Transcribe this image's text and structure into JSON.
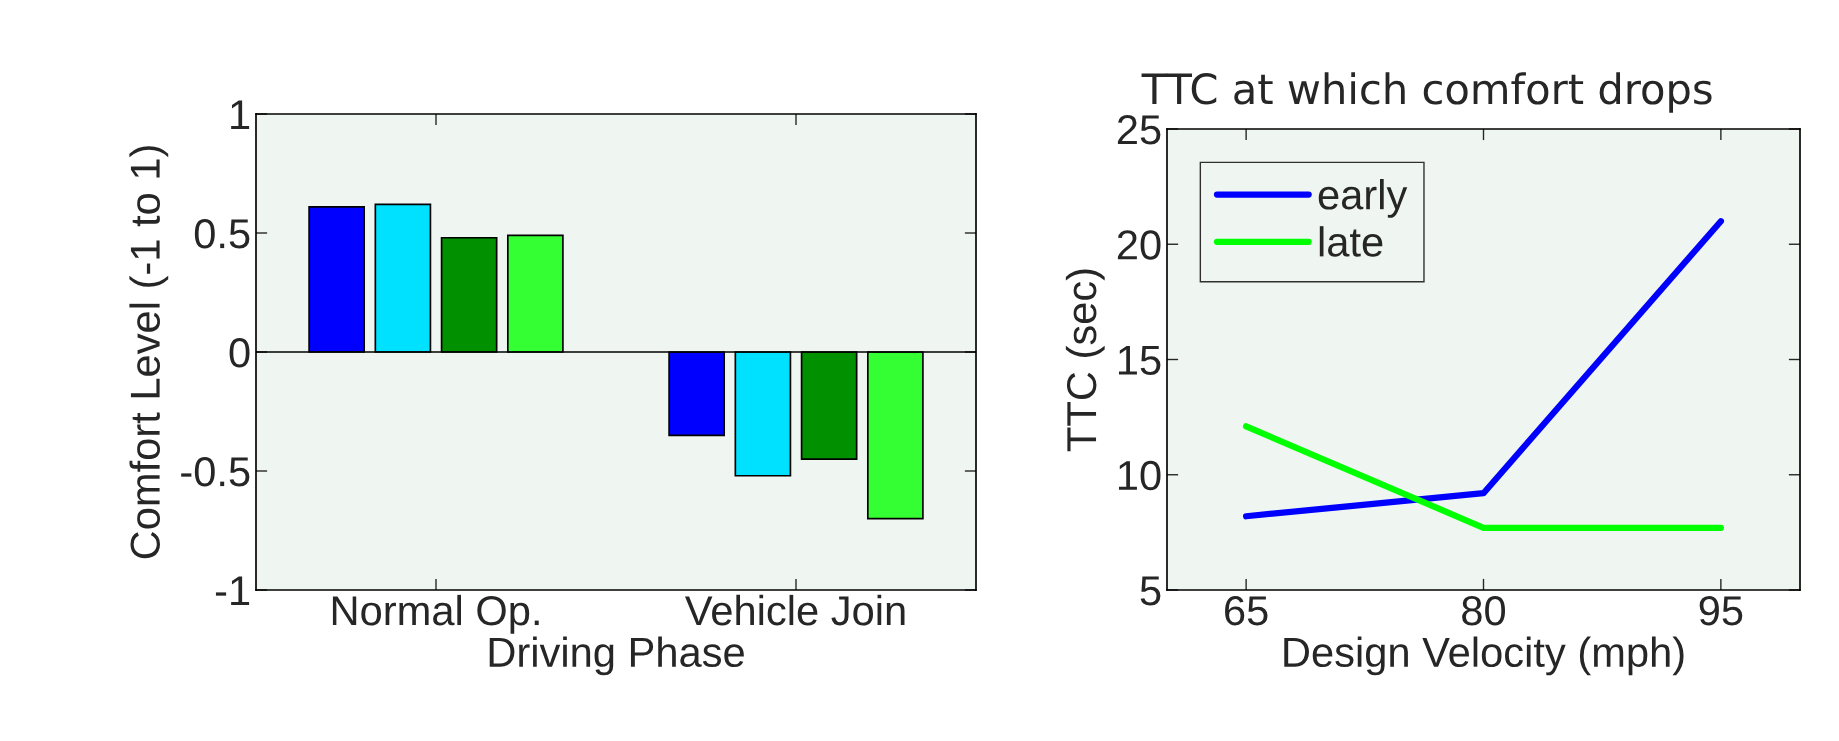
{
  "chart_data": [
    {
      "type": "bar",
      "xlabel": "Driving Phase",
      "ylabel": "Comfort Level (-1 to 1)",
      "categories": [
        "Normal Op.",
        "Vehicle Join"
      ],
      "series": [
        {
          "color": "#0000ff",
          "values": [
            0.61,
            -0.35
          ]
        },
        {
          "color": "#00e0ff",
          "values": [
            0.62,
            -0.52
          ]
        },
        {
          "color": "#009000",
          "values": [
            0.48,
            -0.45
          ]
        },
        {
          "color": "#33ff33",
          "values": [
            0.49,
            -0.7
          ]
        }
      ],
      "ylim": [
        -1,
        1
      ],
      "yticks": [
        -1,
        -0.5,
        0,
        0.5,
        1
      ],
      "grid": false,
      "legend": false,
      "ref_lines": [
        {
          "axis": "y",
          "value": 0,
          "color": "#000000"
        }
      ]
    },
    {
      "type": "line",
      "title": "TTC at which comfort drops",
      "xlabel": "Design Velocity (mph)",
      "ylabel": "TTC (sec)",
      "x": [
        65,
        80,
        95
      ],
      "series": [
        {
          "name": "early",
          "color": "#0000ff",
          "values": [
            8.2,
            9.2,
            21.0
          ]
        },
        {
          "name": "late",
          "color": "#00ff00",
          "values": [
            12.1,
            7.7,
            7.7
          ]
        }
      ],
      "xlim": [
        60,
        100
      ],
      "xticks": [
        65,
        80,
        95
      ],
      "ylim": [
        5,
        25
      ],
      "yticks": [
        5,
        10,
        15,
        20,
        25
      ],
      "grid": false,
      "legend": "top left",
      "marker": "none",
      "line_style": "solid"
    }
  ]
}
